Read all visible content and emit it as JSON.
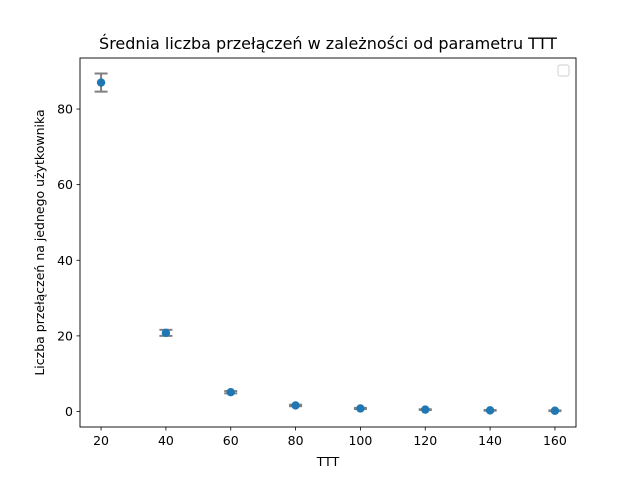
{
  "chart_data": {
    "type": "scatter",
    "title": "Średnia liczba przełączeń w zależności od parametru TTT",
    "xlabel": "TTT",
    "ylabel": "Liczba przełączeń na jednego użytkownika",
    "xlim": [
      13.5,
      166.5
    ],
    "ylim": [
      -4.1,
      93.5
    ],
    "xticks": [
      20,
      40,
      60,
      80,
      100,
      120,
      140,
      160
    ],
    "yticks": [
      0,
      20,
      40,
      60,
      80
    ],
    "grid": false,
    "legend": "top-right",
    "marker_color": "#1f77b4",
    "errorbar_color": "#808080",
    "x": [
      20,
      40,
      60,
      80,
      100,
      120,
      140,
      160
    ],
    "y": [
      87.0,
      20.8,
      5.1,
      1.6,
      0.8,
      0.5,
      0.3,
      0.2
    ],
    "yerr": [
      2.4,
      0.8,
      0.3,
      0.2,
      0.15,
      0.1,
      0.1,
      0.1
    ]
  }
}
